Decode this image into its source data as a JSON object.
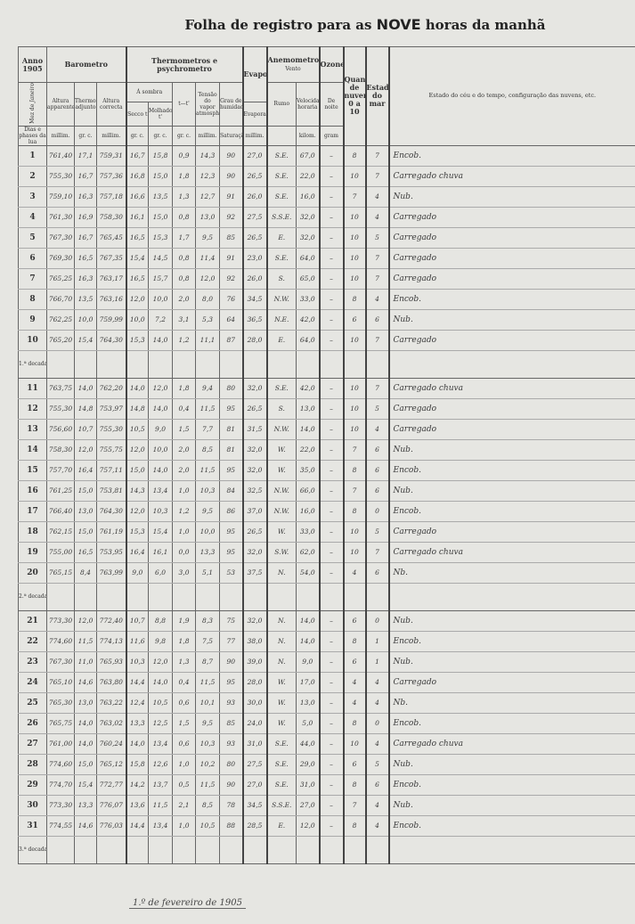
{
  "title_pre": "Folha de registro para as ",
  "title_bold": "NOVE",
  "title_post": " horas da manhã",
  "header": {
    "anno": "Anno",
    "year": "1905",
    "mez": "Mez de",
    "month": "Janeiro",
    "dias": "Dias e phases da lua",
    "barometro": "Barometro",
    "altura_apparente": "Altura apparente",
    "thermometro_adjunto": "Thermometro adjunto",
    "altura_correcta": "Altura correcta",
    "thermometros": "Thermometros e psychrometro",
    "a_sombra": "Á sombra",
    "secco": "Secco t",
    "molhado": "Molhado t'",
    "diff": "t—t'",
    "tensao": "Tensão do vapor atmospherico",
    "grau": "Grau de humidade",
    "evaporometro": "Evaporometro",
    "evaporacao": "Evaporação",
    "anemometro": "Anemometro",
    "vento": "Vento",
    "rumo": "Rumo",
    "velocidade": "Velocidade horaria",
    "ozone": "Ozone",
    "de_noite": "De noite",
    "nuvens": "Quantidade de nuvens 0 a 10",
    "mar": "Estado do mar",
    "ceu": "Estado do céu e do tempo, configuração das nuvens, etc.",
    "units": [
      "millim.",
      "gr. c.",
      "millim.",
      "gr. c.",
      "gr. c.",
      "gr. c.",
      "millim.",
      "Saturação=100",
      "millim.",
      "",
      "kilom.",
      "gram"
    ]
  },
  "decadas": [
    "1.ª decada",
    "2.ª decada",
    "3.ª decada"
  ],
  "rows": [
    [
      "1",
      "761,40",
      "17,1",
      "759,31",
      "16,7",
      "15,8",
      "0,9",
      "14,3",
      "90",
      "27,0",
      "S.E.",
      "67,0",
      "–",
      "8",
      "7",
      "Encob."
    ],
    [
      "2",
      "755,30",
      "16,7",
      "757,36",
      "16,8",
      "15,0",
      "1,8",
      "12,3",
      "90",
      "26,5",
      "S.E.",
      "22,0",
      "–",
      "10",
      "7",
      "Carregado chuva"
    ],
    [
      "3",
      "759,10",
      "16,3",
      "757,18",
      "16,6",
      "13,5",
      "1,3",
      "12,7",
      "91",
      "26,0",
      "S.E.",
      "16,0",
      "–",
      "7",
      "4",
      "Nub."
    ],
    [
      "4",
      "761,30",
      "16,9",
      "758,30",
      "16,1",
      "15,0",
      "0,8",
      "13,0",
      "92",
      "27,5",
      "S.S.E.",
      "32,0",
      "–",
      "10",
      "4",
      "Carregado"
    ],
    [
      "5",
      "767,30",
      "16,7",
      "765,45",
      "16,5",
      "15,3",
      "1,7",
      "9,5",
      "85",
      "26,5",
      "E.",
      "32,0",
      "–",
      "10",
      "5",
      "Carregado"
    ],
    [
      "6",
      "769,30",
      "16,5",
      "767,35",
      "15,4",
      "14,5",
      "0,8",
      "11,4",
      "91",
      "23,0",
      "S.E.",
      "64,0",
      "–",
      "10",
      "7",
      "Carregado"
    ],
    [
      "7",
      "765,25",
      "16,3",
      "763,17",
      "16,5",
      "15,7",
      "0,8",
      "12,0",
      "92",
      "26,0",
      "S.",
      "65,0",
      "–",
      "10",
      "7",
      "Carregado"
    ],
    [
      "8",
      "766,70",
      "13,5",
      "763,16",
      "12,0",
      "10,0",
      "2,0",
      "8,0",
      "76",
      "34,5",
      "N.W.",
      "33,0",
      "–",
      "8",
      "4",
      "Encob."
    ],
    [
      "9",
      "762,25",
      "10,0",
      "759,99",
      "10,0",
      "7,2",
      "3,1",
      "5,3",
      "64",
      "36,5",
      "N.E.",
      "42,0",
      "–",
      "6",
      "6",
      "Nub."
    ],
    [
      "10",
      "765,20",
      "15,4",
      "764,30",
      "15,3",
      "14,0",
      "1,2",
      "11,1",
      "87",
      "28,0",
      "E.",
      "64,0",
      "–",
      "10",
      "7",
      "Carregado"
    ],
    [
      "11",
      "763,75",
      "14,0",
      "762,20",
      "14,0",
      "12,0",
      "1,8",
      "9,4",
      "80",
      "32,0",
      "S.E.",
      "42,0",
      "–",
      "10",
      "7",
      "Carregado chuva"
    ],
    [
      "12",
      "755,30",
      "14,8",
      "753,97",
      "14,8",
      "14,0",
      "0,4",
      "11,5",
      "95",
      "26,5",
      "S.",
      "13,0",
      "–",
      "10",
      "5",
      "Carregado"
    ],
    [
      "13",
      "756,60",
      "10,7",
      "755,30",
      "10,5",
      "9,0",
      "1,5",
      "7,7",
      "81",
      "31,5",
      "N.W.",
      "14,0",
      "–",
      "10",
      "4",
      "Carregado"
    ],
    [
      "14",
      "758,30",
      "12,0",
      "755,75",
      "12,0",
      "10,0",
      "2,0",
      "8,5",
      "81",
      "32,0",
      "W.",
      "22,0",
      "–",
      "7",
      "6",
      "Nub."
    ],
    [
      "15",
      "757,70",
      "16,4",
      "757,11",
      "15,0",
      "14,0",
      "2,0",
      "11,5",
      "95",
      "32,0",
      "W.",
      "35,0",
      "–",
      "8",
      "6",
      "Encob."
    ],
    [
      "16",
      "761,25",
      "15,0",
      "753,81",
      "14,3",
      "13,4",
      "1,0",
      "10,3",
      "84",
      "32,5",
      "N.W.",
      "66,0",
      "–",
      "7",
      "6",
      "Nub."
    ],
    [
      "17",
      "766,40",
      "13,0",
      "764,30",
      "12,0",
      "10,3",
      "1,2",
      "9,5",
      "86",
      "37,0",
      "N.W.",
      "16,0",
      "–",
      "8",
      "0",
      "Encob."
    ],
    [
      "18",
      "762,15",
      "15,0",
      "761,19",
      "15,3",
      "15,4",
      "1,0",
      "10,0",
      "95",
      "26,5",
      "W.",
      "33,0",
      "–",
      "10",
      "5",
      "Carregado"
    ],
    [
      "19",
      "755,00",
      "16,5",
      "753,95",
      "16,4",
      "16,1",
      "0,0",
      "13,3",
      "95",
      "32,0",
      "S.W.",
      "62,0",
      "–",
      "10",
      "7",
      "Carregado chuva"
    ],
    [
      "20",
      "765,15",
      "8,4",
      "763,99",
      "9,0",
      "6,0",
      "3,0",
      "5,1",
      "53",
      "37,5",
      "N.",
      "54,0",
      "–",
      "4",
      "6",
      "Nb."
    ],
    [
      "21",
      "773,30",
      "12,0",
      "772,40",
      "10,7",
      "8,8",
      "1,9",
      "8,3",
      "75",
      "32,0",
      "N.",
      "14,0",
      "–",
      "6",
      "0",
      "Nub."
    ],
    [
      "22",
      "774,60",
      "11,5",
      "774,13",
      "11,6",
      "9,8",
      "1,8",
      "7,5",
      "77",
      "38,0",
      "N.",
      "14,0",
      "–",
      "8",
      "1",
      "Encob."
    ],
    [
      "23",
      "767,30",
      "11,0",
      "765,93",
      "10,3",
      "12,0",
      "1,3",
      "8,7",
      "90",
      "39,0",
      "N.",
      "9,0",
      "–",
      "6",
      "1",
      "Nub."
    ],
    [
      "24",
      "765,10",
      "14,6",
      "763,80",
      "14,4",
      "14,0",
      "0,4",
      "11,5",
      "95",
      "28,0",
      "W.",
      "17,0",
      "–",
      "4",
      "4",
      "Carregado"
    ],
    [
      "25",
      "765,30",
      "13,0",
      "763,22",
      "12,4",
      "10,5",
      "0,6",
      "10,1",
      "93",
      "30,0",
      "W.",
      "13,0",
      "–",
      "4",
      "4",
      "Nb."
    ],
    [
      "26",
      "765,75",
      "14,0",
      "763,02",
      "13,3",
      "12,5",
      "1,5",
      "9,5",
      "85",
      "24,0",
      "W.",
      "5,0",
      "–",
      "8",
      "0",
      "Encob."
    ],
    [
      "27",
      "761,00",
      "14,0",
      "760,24",
      "14,0",
      "13,4",
      "0,6",
      "10,3",
      "93",
      "31,0",
      "S.E.",
      "44,0",
      "–",
      "10",
      "4",
      "Carregado chuva"
    ],
    [
      "28",
      "774,60",
      "15,0",
      "765,12",
      "15,8",
      "12,6",
      "1,0",
      "10,2",
      "80",
      "27,5",
      "S.E.",
      "29,0",
      "–",
      "6",
      "5",
      "Nub."
    ],
    [
      "29",
      "774,70",
      "15,4",
      "772,77",
      "14,2",
      "13,7",
      "0,5",
      "11,5",
      "90",
      "27,0",
      "S.E.",
      "31,0",
      "–",
      "8",
      "6",
      "Encob."
    ],
    [
      "30",
      "773,30",
      "13,3",
      "776,07",
      "13,6",
      "11,5",
      "2,1",
      "8,5",
      "78",
      "34,5",
      "S.S.E.",
      "27,0",
      "–",
      "7",
      "4",
      "Nub."
    ],
    [
      "31",
      "774,55",
      "14,6",
      "776,03",
      "14,4",
      "13,4",
      "1,0",
      "10,5",
      "88",
      "28,5",
      "E.",
      "12,0",
      "–",
      "8",
      "4",
      "Encob."
    ]
  ],
  "footer": "1.º de fevereiro de 1905"
}
